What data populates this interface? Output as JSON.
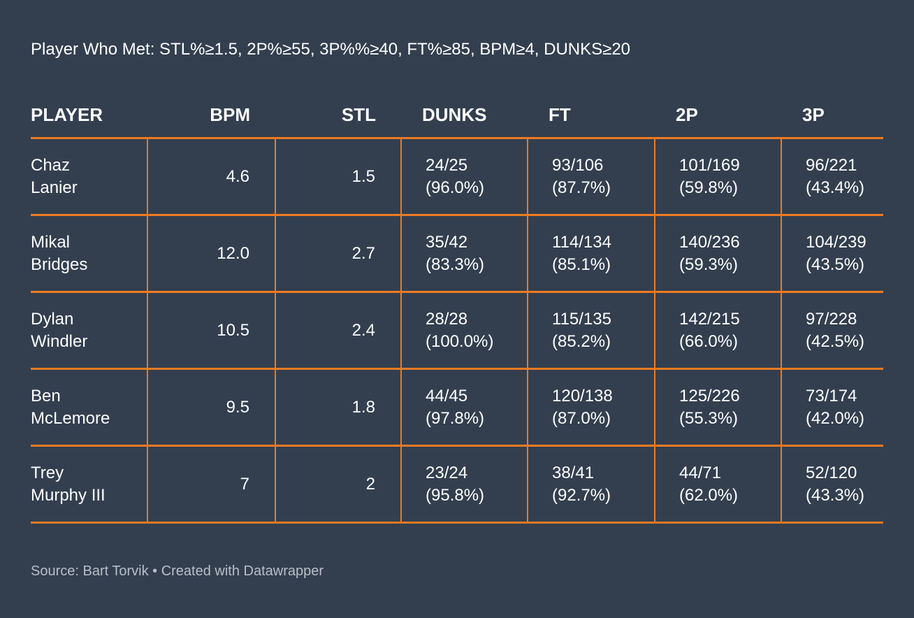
{
  "title": "Player Who Met: STL%≥1.5, 2P%≥55, 3P%%≥40, FT%≥85, BPM≥4, DUNKS≥20",
  "footer": "Source: Bart Torvik • Created with Datawrapper",
  "colors": {
    "background": "#333f4f",
    "accent": "#f07a21",
    "text": "#ffffff",
    "footer_text": "#b8bec7"
  },
  "chart_data": {
    "type": "table",
    "columns": [
      "PLAYER",
      "BPM",
      "STL",
      "DUNKS",
      "FT",
      "2P",
      "3P"
    ],
    "rows": [
      {
        "player": [
          "Chaz",
          "Lanier"
        ],
        "bpm": "4.6",
        "stl": "1.5",
        "dunks": [
          "24/25",
          "(96.0%)"
        ],
        "ft": [
          "93/106",
          "(87.7%)"
        ],
        "two_p": [
          "101/169",
          "(59.8%)"
        ],
        "three_p": [
          "96/221",
          "(43.4%)"
        ]
      },
      {
        "player": [
          "Mikal",
          "Bridges"
        ],
        "bpm": "12.0",
        "stl": "2.7",
        "dunks": [
          "35/42",
          "(83.3%)"
        ],
        "ft": [
          "114/134",
          "(85.1%)"
        ],
        "two_p": [
          "140/236",
          "(59.3%)"
        ],
        "three_p": [
          "104/239",
          "(43.5%)"
        ]
      },
      {
        "player": [
          "Dylan",
          "Windler"
        ],
        "bpm": "10.5",
        "stl": "2.4",
        "dunks": [
          "28/28",
          "(100.0%)"
        ],
        "ft": [
          "115/135",
          "(85.2%)"
        ],
        "two_p": [
          "142/215",
          "(66.0%)"
        ],
        "three_p": [
          "97/228",
          "(42.5%)"
        ]
      },
      {
        "player": [
          "Ben",
          "McLemore"
        ],
        "bpm": "9.5",
        "stl": "1.8",
        "dunks": [
          "44/45",
          "(97.8%)"
        ],
        "ft": [
          "120/138",
          "(87.0%)"
        ],
        "two_p": [
          "125/226",
          "(55.3%)"
        ],
        "three_p": [
          "73/174",
          "(42.0%)"
        ]
      },
      {
        "player": [
          "Trey",
          "Murphy III"
        ],
        "bpm": "7",
        "stl": "2",
        "dunks": [
          "23/24",
          "(95.8%)"
        ],
        "ft": [
          "38/41",
          "(92.7%)"
        ],
        "two_p": [
          "44/71",
          "(62.0%)"
        ],
        "three_p": [
          "52/120",
          "(43.3%)"
        ]
      }
    ]
  }
}
